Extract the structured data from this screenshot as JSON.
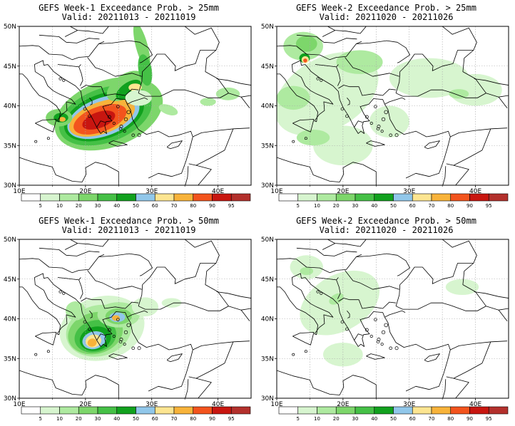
{
  "colors": {
    "levels": [
      "#ffffff",
      "#d7f5cf",
      "#aeeaa0",
      "#7dd66b",
      "#45c046",
      "#11a11e",
      "#91c7ea",
      "#fde591",
      "#f8b33a",
      "#f3541d",
      "#c81610",
      "#b3302c"
    ],
    "land": "#ffffff",
    "border": "#000000",
    "grid": "#a8a8a8"
  },
  "colorbar": {
    "labels": [
      "5",
      "10",
      "20",
      "30",
      "40",
      "50",
      "60",
      "70",
      "80",
      "90",
      "95"
    ]
  },
  "axes": {
    "lon_labels": [
      "10E",
      "20E",
      "30E",
      "40E"
    ],
    "lat_labels": [
      "50N",
      "45N",
      "40N",
      "35N",
      "30N"
    ]
  },
  "panels": [
    {
      "title": "GEFS Week-1 Exceedance Prob. > 25mm",
      "valid": "Valid: 20211013 - 20211019",
      "kind": "w1_25"
    },
    {
      "title": "GEFS Week-2 Exceedance Prob. > 25mm",
      "valid": "Valid: 20211020 - 20211026",
      "kind": "w2_25"
    },
    {
      "title": "GEFS Week-1 Exceedance Prob. > 50mm",
      "valid": "Valid: 20211013 - 20211019",
      "kind": "w1_50"
    },
    {
      "title": "GEFS Week-2 Exceedance Prob. > 50mm",
      "valid": "Valid: 20211020 - 20211026",
      "kind": "w2_50"
    }
  ]
}
